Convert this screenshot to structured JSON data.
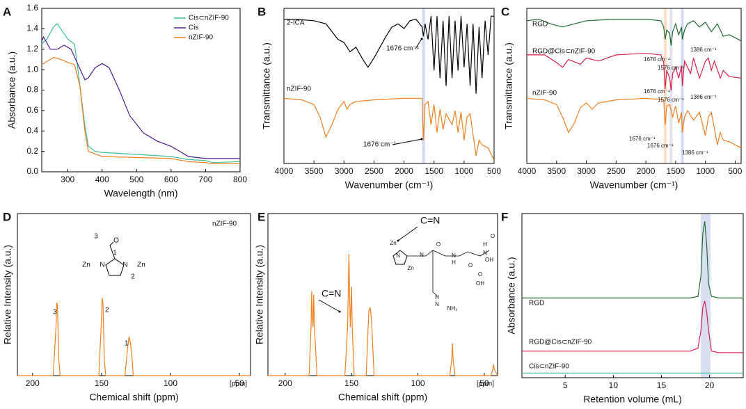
{
  "chart_data": [
    {
      "type": "line",
      "panel": "A",
      "x_label": "Wavelength (nm)",
      "y_label": "Absorbance (a.u.)",
      "xlim": [
        225,
        800
      ],
      "ylim": [
        0,
        1.6
      ],
      "xticks": [
        300,
        400,
        500,
        600,
        700,
        800
      ],
      "yticks": [
        {
          "value": 0,
          "label": "0.0"
        },
        {
          "value": 0.2,
          "label": "0.2"
        },
        {
          "value": 0.4,
          "label": "0.4"
        },
        {
          "value": 0.6,
          "label": "0.6"
        },
        {
          "value": 0.8,
          "label": "0.8"
        },
        {
          "value": 1.0,
          "label": "1.0"
        },
        {
          "value": 1.2,
          "label": "1.2"
        },
        {
          "value": 1.4,
          "label": "1.4"
        },
        {
          "value": 1.6,
          "label": "1.6"
        }
      ],
      "legend": "top-right",
      "series": [
        {
          "name": "Cis⊂nZIF-90",
          "color": "#3cbf9a",
          "x": [
            225,
            240,
            260,
            270,
            280,
            300,
            320,
            330,
            350,
            360,
            380,
            400,
            500,
            600,
            650,
            700,
            720,
            800
          ],
          "values": [
            1.25,
            1.3,
            1.42,
            1.45,
            1.4,
            1.3,
            1.25,
            1.0,
            0.45,
            0.25,
            0.2,
            0.19,
            0.17,
            0.15,
            0.12,
            0.11,
            0.09,
            0.1
          ]
        },
        {
          "name": "Cis",
          "color": "#4b1b91",
          "x": [
            225,
            230,
            250,
            270,
            290,
            310,
            330,
            350,
            360,
            380,
            400,
            420,
            450,
            480,
            520,
            560,
            600,
            650,
            700,
            800
          ],
          "values": [
            1.28,
            1.32,
            1.2,
            1.2,
            1.24,
            1.2,
            1.05,
            0.9,
            0.92,
            1.02,
            1.06,
            1.02,
            0.8,
            0.55,
            0.38,
            0.3,
            0.25,
            0.15,
            0.13,
            0.13
          ]
        },
        {
          "name": "nZIF-90",
          "color": "#f07f1e",
          "x": [
            225,
            240,
            260,
            280,
            300,
            320,
            335,
            350,
            360,
            400,
            500,
            600,
            650,
            700,
            720,
            800
          ],
          "values": [
            1.05,
            1.08,
            1.12,
            1.1,
            1.07,
            1.05,
            0.85,
            0.4,
            0.2,
            0.15,
            0.14,
            0.13,
            0.1,
            0.09,
            0.08,
            0.08
          ]
        }
      ]
    },
    {
      "type": "line",
      "panel": "B",
      "x_label": "Wavenumber (cm⁻¹)",
      "y_label": "Transmittance (a.u.)",
      "xlim": [
        4000,
        500
      ],
      "ylim": [
        0,
        1
      ],
      "xticks": [
        4000,
        3500,
        3000,
        2500,
        2000,
        1500,
        1000,
        500
      ],
      "highlights": [
        {
          "from": 1700,
          "to": 1650,
          "color": "#c9d3f0"
        }
      ],
      "annotations": [
        "1676 cm⁻¹",
        "1676 cm⁻¹"
      ],
      "series": [
        {
          "name": "2-ICA",
          "color": "#000000",
          "x": [
            4000,
            3800,
            3500,
            3300,
            3200,
            3100,
            3000,
            2900,
            2800,
            2700,
            2600,
            2500,
            2400,
            2300,
            2200,
            2100,
            2000,
            1900,
            1800,
            1700,
            1676,
            1650,
            1600,
            1550,
            1500,
            1450,
            1400,
            1350,
            1300,
            1250,
            1200,
            1150,
            1100,
            1050,
            1000,
            950,
            900,
            850,
            800,
            750,
            700,
            650,
            600,
            550,
            500
          ],
          "values": [
            0.93,
            0.93,
            0.92,
            0.9,
            0.85,
            0.8,
            0.78,
            0.72,
            0.75,
            0.68,
            0.62,
            0.68,
            0.75,
            0.82,
            0.88,
            0.9,
            0.87,
            0.92,
            0.93,
            0.88,
            0.82,
            0.9,
            0.8,
            0.95,
            0.6,
            0.95,
            0.55,
            0.92,
            0.5,
            0.95,
            0.55,
            0.92,
            0.6,
            0.95,
            0.62,
            0.9,
            0.5,
            0.9,
            0.45,
            0.88,
            0.55,
            0.92,
            0.7,
            0.95,
            0.95
          ]
        },
        {
          "name": "nZIF-90",
          "color": "#f07f1e",
          "x": [
            4000,
            3700,
            3500,
            3400,
            3300,
            3200,
            3100,
            3000,
            2950,
            2900,
            2800,
            2500,
            2000,
            1700,
            1676,
            1650,
            1600,
            1550,
            1500,
            1450,
            1400,
            1350,
            1300,
            1200,
            1150,
            1100,
            1050,
            1000,
            950,
            900,
            800,
            750,
            700,
            600,
            500
          ],
          "values": [
            0.42,
            0.41,
            0.38,
            0.3,
            0.17,
            0.25,
            0.35,
            0.4,
            0.35,
            0.38,
            0.4,
            0.41,
            0.42,
            0.42,
            0.15,
            0.38,
            0.4,
            0.25,
            0.38,
            0.2,
            0.35,
            0.22,
            0.32,
            0.25,
            0.34,
            0.2,
            0.33,
            0.15,
            0.3,
            0.32,
            0.05,
            0.15,
            0.12,
            0.1,
            0.02
          ]
        }
      ]
    },
    {
      "type": "line",
      "panel": "C",
      "x_label": "Wavenumber (cm⁻¹)",
      "y_label": "Transmittance (a.u.)",
      "xlim": [
        4000,
        400
      ],
      "ylim": [
        0,
        1
      ],
      "xticks": [
        4000,
        3500,
        3000,
        2500,
        2000,
        1500,
        1000,
        500
      ],
      "highlights": [
        {
          "from": 1700,
          "to": 1650,
          "color": "#f9d9b8"
        },
        {
          "from": 1600,
          "to": 1555,
          "color": "#d9dde8"
        },
        {
          "from": 1410,
          "to": 1365,
          "color": "#c5d0f0"
        }
      ],
      "annotations": [
        "1676 cm⁻¹",
        "1576 cm⁻¹",
        "1386 cm⁻¹",
        "1676 cm⁻¹",
        "1576 cm⁻¹",
        "1386 cm⁻¹",
        "1676 cm⁻¹",
        "1676 cm⁻¹",
        "1386 cm⁻¹"
      ],
      "series": [
        {
          "name": "RGD",
          "color": "#1e6b2e",
          "x": [
            4000,
            3800,
            3600,
            3400,
            3200,
            3000,
            2500,
            2000,
            1750,
            1700,
            1676,
            1650,
            1600,
            1576,
            1550,
            1500,
            1450,
            1400,
            1386,
            1350,
            1300,
            1200,
            1100,
            1000,
            900,
            800,
            700,
            600,
            400
          ],
          "values": [
            0.92,
            0.93,
            0.9,
            0.88,
            0.9,
            0.92,
            0.93,
            0.93,
            0.92,
            0.88,
            0.8,
            0.86,
            0.84,
            0.76,
            0.85,
            0.9,
            0.83,
            0.88,
            0.8,
            0.86,
            0.9,
            0.92,
            0.88,
            0.91,
            0.85,
            0.9,
            0.82,
            0.83,
            0.79
          ]
        },
        {
          "name": "RGD@Cis⊂nZIF-90",
          "color": "#d81e4a",
          "x": [
            4000,
            3700,
            3500,
            3400,
            3300,
            3100,
            3000,
            2800,
            2500,
            2000,
            1750,
            1700,
            1676,
            1650,
            1600,
            1576,
            1550,
            1500,
            1450,
            1400,
            1386,
            1350,
            1250,
            1200,
            1100,
            1000,
            950,
            900,
            850,
            750,
            700,
            600,
            400
          ],
          "values": [
            0.7,
            0.7,
            0.65,
            0.62,
            0.67,
            0.64,
            0.68,
            0.66,
            0.7,
            0.71,
            0.7,
            0.65,
            0.48,
            0.6,
            0.55,
            0.47,
            0.58,
            0.62,
            0.55,
            0.63,
            0.5,
            0.66,
            0.58,
            0.68,
            0.55,
            0.66,
            0.68,
            0.6,
            0.66,
            0.55,
            0.6,
            0.56,
            0.55
          ]
        },
        {
          "name": "nZIF-90",
          "color": "#f07f1e",
          "x": [
            4000,
            3700,
            3500,
            3400,
            3300,
            3200,
            3100,
            3000,
            2900,
            2800,
            2500,
            2000,
            1700,
            1676,
            1650,
            1600,
            1550,
            1500,
            1450,
            1400,
            1386,
            1350,
            1300,
            1200,
            1100,
            1000,
            950,
            900,
            800,
            750,
            700,
            600,
            400
          ],
          "values": [
            0.42,
            0.41,
            0.38,
            0.3,
            0.2,
            0.26,
            0.36,
            0.39,
            0.35,
            0.39,
            0.41,
            0.42,
            0.41,
            0.25,
            0.37,
            0.38,
            0.3,
            0.37,
            0.26,
            0.33,
            0.2,
            0.3,
            0.34,
            0.28,
            0.33,
            0.18,
            0.3,
            0.33,
            0.12,
            0.2,
            0.15,
            0.14,
            0.1
          ]
        }
      ]
    },
    {
      "type": "line",
      "panel": "D",
      "x_label": "Chemical shift (ppm)",
      "y_label": "Relative Intensity (a.u.)",
      "x_unit_label": "[ppm]",
      "xlim": [
        211,
        42
      ],
      "ylim": [
        0,
        1
      ],
      "xticks": [
        200,
        150,
        100,
        50
      ],
      "peak_labels": [
        "3",
        "2",
        "1"
      ],
      "structure_labels": [
        "3",
        "O",
        "1",
        "Zn",
        "N",
        "N",
        "Zn",
        "2"
      ],
      "series": [
        {
          "name": "nZIF-90",
          "color": "#f07f1e",
          "x": [
            211,
            185,
            183,
            182.5,
            182,
            181,
            180,
            152,
            150,
            149.5,
            149,
            148,
            147,
            133,
            131,
            130,
            129,
            128,
            127,
            42
          ],
          "values": [
            0,
            0,
            0.3,
            0.45,
            0.44,
            0.1,
            0,
            0,
            0.35,
            0.48,
            0.45,
            0.1,
            0,
            0,
            0.18,
            0.24,
            0.2,
            0.12,
            0,
            0
          ]
        }
      ]
    },
    {
      "type": "line",
      "panel": "E",
      "x_label": "Chemical shift (ppm)",
      "y_label": "Relative Intensity (a.u.)",
      "x_unit_label": "[ppm]",
      "xlim": [
        213,
        40
      ],
      "ylim": [
        0,
        1
      ],
      "xticks": [
        200,
        150,
        100,
        50
      ],
      "annotations": [
        "C=N",
        "C=N"
      ],
      "structure_labels": [
        "Zn",
        "N",
        "Zn",
        "N",
        "O",
        "N",
        "H",
        "O",
        "H",
        "N",
        "O",
        "OH",
        "OH",
        "O",
        "H",
        "N",
        "NH₂"
      ],
      "series": [
        {
          "color": "#f07f1e",
          "x": [
            213,
            182,
            180.5,
            180,
            179.5,
            179,
            178.5,
            178,
            176,
            155,
            153,
            152,
            151,
            150.5,
            150,
            149.5,
            148,
            139,
            137,
            136,
            135,
            133,
            76,
            74.5,
            74,
            73.5,
            72,
            45,
            43.5,
            43,
            42.5,
            40
          ],
          "values": [
            0,
            0,
            0.3,
            0.52,
            0.35,
            0.3,
            0.5,
            0.3,
            0,
            0,
            0.3,
            0.75,
            0.3,
            0.4,
            0.55,
            0.3,
            0,
            0,
            0.4,
            0.42,
            0.35,
            0,
            0,
            0.1,
            0.2,
            0.1,
            0,
            0,
            0.04,
            0.07,
            0.04,
            0
          ]
        }
      ]
    },
    {
      "type": "line",
      "panel": "F",
      "x_label": "Retention volume (mL)",
      "y_label": "Absorbance (a.u.)",
      "xlim": [
        0.5,
        23.5
      ],
      "ylim": [
        0,
        1.05
      ],
      "xticks": [
        5,
        10,
        15,
        20
      ],
      "highlights": [
        {
          "from": 19.1,
          "to": 20.1,
          "color": "#cdd7ee"
        }
      ],
      "series": [
        {
          "name": "RGD",
          "color": "#1e6b2e",
          "x": [
            0.5,
            18,
            18.8,
            19.1,
            19.3,
            19.5,
            19.7,
            19.9,
            20.2,
            21,
            23.5
          ],
          "values": [
            0.51,
            0.51,
            0.52,
            0.65,
            0.92,
            1.0,
            0.85,
            0.6,
            0.52,
            0.51,
            0.51
          ]
        },
        {
          "name": "RGD@Cis⊂nZIF-90",
          "color": "#d81e4a",
          "x": [
            0.5,
            18,
            18.8,
            19.1,
            19.3,
            19.5,
            19.7,
            19.9,
            20.2,
            21,
            23.5
          ],
          "values": [
            0.17,
            0.17,
            0.19,
            0.3,
            0.45,
            0.49,
            0.42,
            0.3,
            0.17,
            0.16,
            0.16
          ]
        },
        {
          "name": "Cis⊂nZIF-90",
          "color": "#3cbf9a",
          "x": [
            0.5,
            23.5
          ],
          "values": [
            0.03,
            0.03
          ]
        }
      ]
    }
  ]
}
